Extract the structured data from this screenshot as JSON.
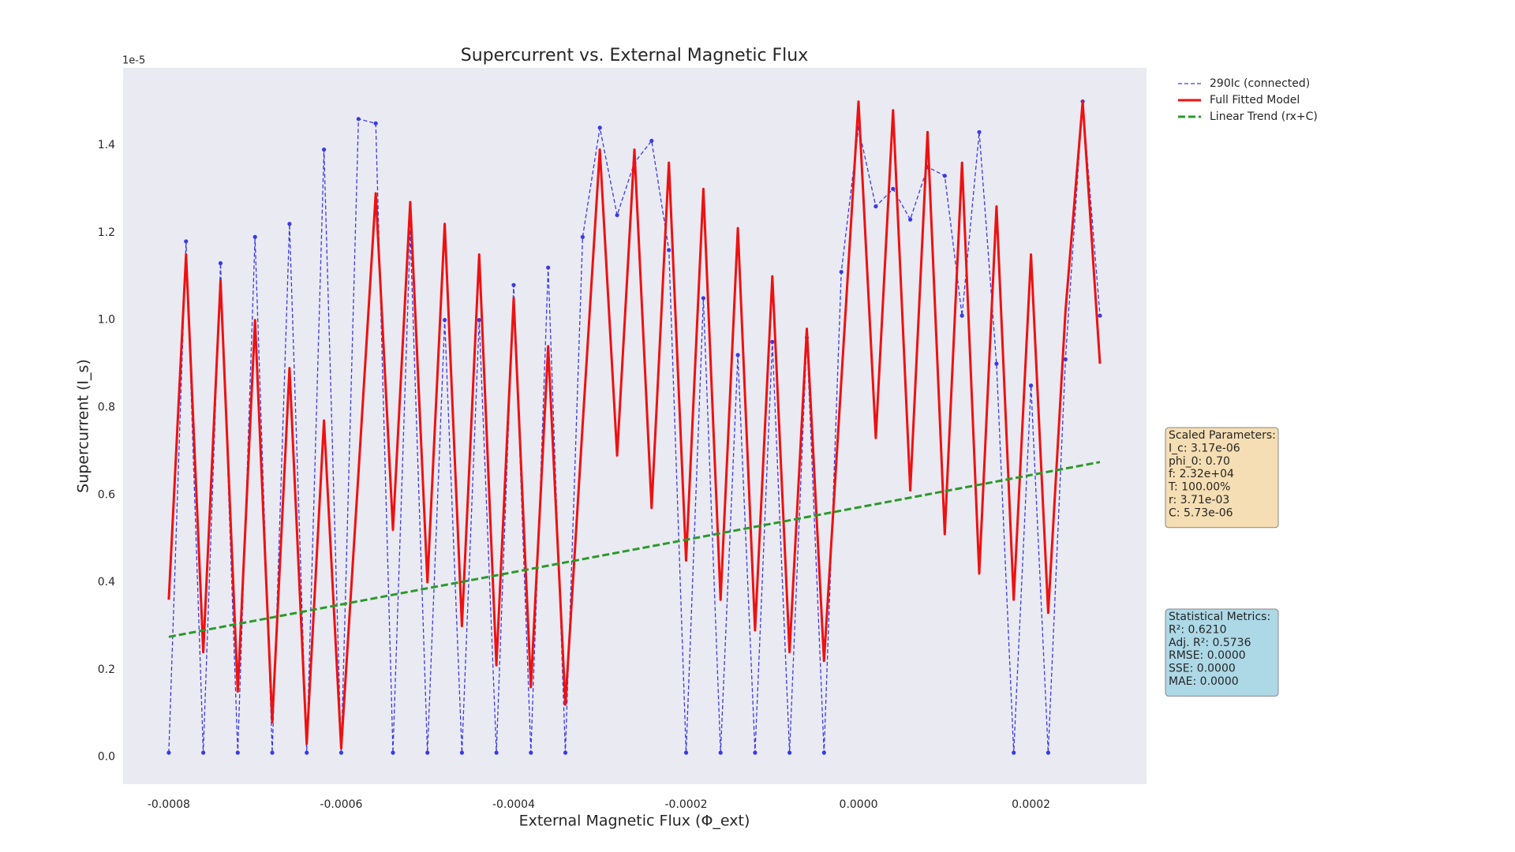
{
  "chart_data": {
    "type": "line",
    "title": "Supercurrent vs. External Magnetic Flux",
    "x_label": "External Magnetic Flux (Φ_ext)",
    "y_label": "Supercurrent (I_s)",
    "y_offset_label": "1e-5",
    "x": [
      -0.0008,
      -0.00078,
      -0.00076,
      -0.00074,
      -0.00072,
      -0.0007,
      -0.00068,
      -0.00066,
      -0.00064,
      -0.00062,
      -0.0006,
      -0.00058,
      -0.00056,
      -0.00054,
      -0.00052,
      -0.0005,
      -0.00048,
      -0.00046,
      -0.00044,
      -0.00042,
      -0.0004,
      -0.00038,
      -0.00036,
      -0.00034,
      -0.00032,
      -0.0003,
      -0.00028,
      -0.00026,
      -0.00024,
      -0.00022,
      -0.0002,
      -0.00018,
      -0.00016,
      -0.00014,
      -0.00012,
      -0.0001,
      -8e-05,
      -6e-05,
      -4e-05,
      -2e-05,
      0,
      2e-05,
      4e-05,
      6e-05,
      8e-05,
      0.0001,
      0.00012,
      0.00014,
      0.00016,
      0.00018,
      0.0002,
      0.00022,
      0.00024,
      0.00026,
      0.00028
    ],
    "series": [
      {
        "name": "290Ic (connected)",
        "color": "#3a3ae6",
        "style": "dashed-markers",
        "values": [
          0.01,
          1.18,
          0.01,
          1.13,
          0.01,
          1.19,
          0.01,
          1.22,
          0.01,
          1.39,
          0.01,
          1.46,
          1.45,
          0.01,
          1.2,
          0.01,
          1.0,
          0.01,
          1.0,
          0.01,
          1.08,
          0.01,
          1.12,
          0.01,
          1.19,
          1.44,
          1.24,
          1.36,
          1.41,
          1.16,
          0.01,
          1.05,
          0.01,
          0.92,
          0.01,
          0.95,
          0.01,
          0.96,
          0.01,
          1.11,
          1.44,
          1.26,
          1.3,
          1.23,
          1.35,
          1.33,
          1.01,
          1.43,
          0.9,
          0.01,
          0.85,
          0.01,
          0.91,
          1.5,
          1.01
        ]
      },
      {
        "name": "Full Fitted Model",
        "color": "#ee1111",
        "style": "solid",
        "values": [
          0.36,
          1.15,
          0.24,
          1.09,
          0.15,
          1.0,
          0.08,
          0.89,
          0.03,
          0.77,
          0.02,
          0.65,
          1.29,
          0.52,
          1.27,
          0.4,
          1.22,
          0.3,
          1.15,
          0.21,
          1.05,
          0.16,
          0.94,
          0.12,
          0.76,
          1.39,
          0.69,
          1.39,
          0.57,
          1.36,
          0.45,
          1.3,
          0.36,
          1.21,
          0.29,
          1.1,
          0.24,
          0.98,
          0.22,
          0.86,
          1.5,
          0.73,
          1.48,
          0.61,
          1.43,
          0.51,
          1.36,
          0.42,
          1.26,
          0.36,
          1.15,
          0.33,
          1.02,
          1.5,
          0.9
        ]
      },
      {
        "name": "Linear Trend (rx+C)",
        "color": "#2a9a2a",
        "style": "thick-dashed",
        "x": [
          -0.0008,
          0.00028
        ],
        "values": [
          0.275,
          0.675
        ]
      }
    ],
    "xlim": [
      -0.000853,
      0.000334
    ],
    "ylim": [
      -0.062,
      1.577
    ],
    "xticks": [
      -0.0008,
      -0.0006,
      -0.0004,
      -0.0002,
      {
        "value": 0,
        "label": "0.0000"
      },
      0.0002
    ],
    "yticks": [
      {
        "value": 0,
        "label": "0.0"
      },
      0.2,
      0.4,
      0.6,
      0.8,
      {
        "value": 1,
        "label": "1.0"
      },
      1.2,
      1.4
    ],
    "grid": false,
    "legend": "outside-upper-right",
    "annotations": [
      {
        "color": "#f5deb3",
        "lines": [
          "Scaled Parameters:",
          "I_c: 3.17e-06",
          "phi_0: 0.70",
          "f: 2.32e+04",
          "T: 100.00%",
          "r: 3.71e-03",
          "C: 5.73e-06"
        ]
      },
      {
        "color": "#add8e6",
        "lines": [
          "Statistical Metrics:",
          "R²: 0.6210",
          "Adj. R²: 0.5736",
          "RMSE: 0.0000",
          "SSE: 0.0000",
          "MAE: 0.0000"
        ]
      }
    ]
  }
}
